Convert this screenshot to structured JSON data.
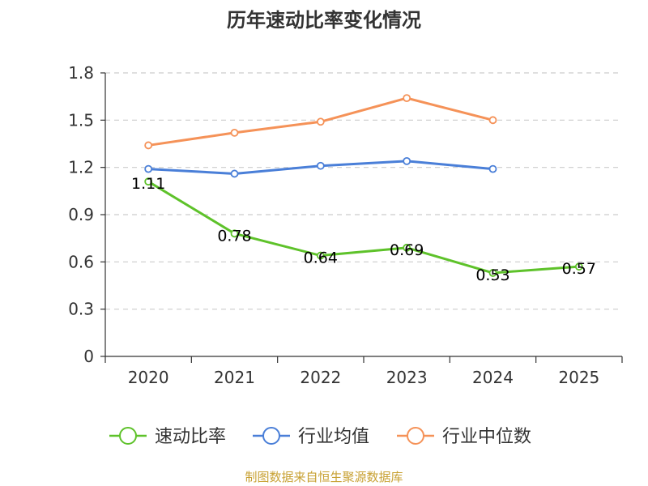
{
  "chart_data": {
    "type": "line",
    "title": "历年速动比率变化情况",
    "categories": [
      "2020",
      "2021",
      "2022",
      "2023",
      "2024",
      "2025"
    ],
    "ylim": [
      0,
      1.8
    ],
    "yticks": [
      "0",
      "0.3",
      "0.6",
      "0.9",
      "1.2",
      "1.5",
      "1.8"
    ],
    "grid": true,
    "legend_position": "bottom",
    "series": [
      {
        "name": "速动比率",
        "color": "#5ec22a",
        "values": [
          1.11,
          0.78,
          0.64,
          0.69,
          0.53,
          0.57
        ],
        "labels": [
          "1.11",
          "0.78",
          "0.64",
          "0.69",
          "0.53",
          "0.57"
        ]
      },
      {
        "name": "行业均值",
        "color": "#4a7fd8",
        "values": [
          1.19,
          1.16,
          1.21,
          1.24,
          1.19,
          null
        ]
      },
      {
        "name": "行业中位数",
        "color": "#f59258",
        "values": [
          1.34,
          1.42,
          1.49,
          1.64,
          1.5,
          null
        ]
      }
    ]
  },
  "source_text": "制图数据来自恒生聚源数据库",
  "source_color": "#c8a133"
}
